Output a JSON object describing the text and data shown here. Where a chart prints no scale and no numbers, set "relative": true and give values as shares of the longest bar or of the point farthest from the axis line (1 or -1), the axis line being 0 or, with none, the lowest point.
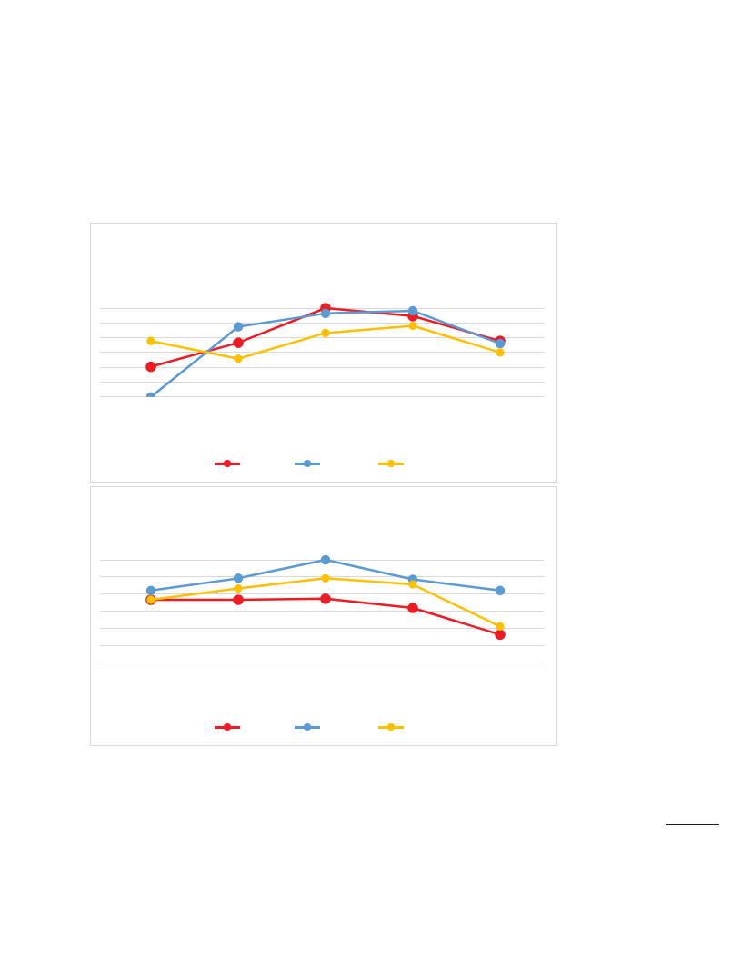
{
  "chart_data": [
    {
      "type": "line",
      "relative": true,
      "categories": [
        null,
        null,
        null,
        null,
        null
      ],
      "grid": "y",
      "marker": "circle",
      "line_style": "solid",
      "series": [
        {
          "color": "#ed1c24",
          "values": [
            0.34,
            0.61,
            1.0,
            0.91,
            0.63
          ]
        },
        {
          "color": "#5b9bd5",
          "values": [
            0,
            0.79,
            0.94,
            0.97,
            0.6
          ]
        },
        {
          "color": "#ffc000",
          "values": [
            0.63,
            0.43,
            0.72,
            0.8,
            0.5
          ]
        }
      ]
    },
    {
      "type": "line",
      "relative": true,
      "categories": [
        null,
        null,
        null,
        null,
        null
      ],
      "grid": "y",
      "marker": "circle",
      "line_style": "solid",
      "series": [
        {
          "color": "#ed1c24",
          "values": [
            0.61,
            0.61,
            0.62,
            0.53,
            0.27
          ]
        },
        {
          "color": "#5b9bd5",
          "values": [
            0.7,
            0.82,
            1.0,
            0.81,
            0.7
          ]
        },
        {
          "color": "#ffc000",
          "values": [
            0.61,
            0.72,
            0.82,
            0.76,
            0.35
          ]
        }
      ]
    }
  ]
}
